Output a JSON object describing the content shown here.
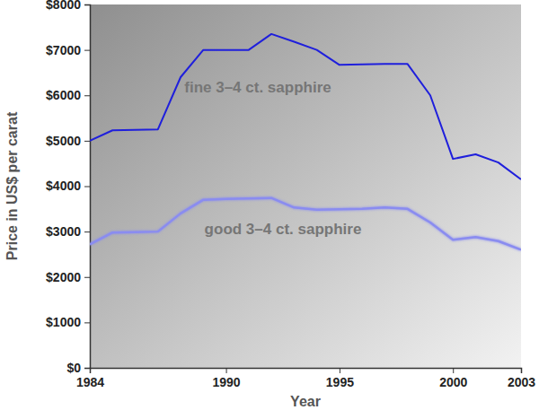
{
  "chart_data": {
    "type": "line",
    "x_label": "Year",
    "y_label": "Price in US$ per carat",
    "x": [
      1984,
      1985,
      1986,
      1987,
      1988,
      1989,
      1990,
      1991,
      1992,
      1993,
      1994,
      1995,
      1996,
      1997,
      1998,
      1999,
      2000,
      2001,
      2002,
      2003
    ],
    "series": [
      {
        "name": "fine 3–4 ct. sapphire",
        "color": "#1f1fdc",
        "values": [
          5000,
          5230,
          5240,
          5250,
          6400,
          7000,
          7000,
          7000,
          7350,
          7180,
          7000,
          6670,
          6680,
          6690,
          6690,
          6000,
          4600,
          4700,
          4520,
          4150
        ]
      },
      {
        "name": "good 3–4 ct. sapphire",
        "color": "#8a8cf0",
        "values": [
          2720,
          2980,
          2990,
          3000,
          3400,
          3700,
          3720,
          3730,
          3740,
          3530,
          3480,
          3490,
          3500,
          3530,
          3500,
          3200,
          2820,
          2880,
          2790,
          2600
        ]
      }
    ],
    "xlim": [
      1984,
      2003
    ],
    "xticks": [
      1984,
      1990,
      1995,
      2000,
      2003
    ],
    "ylim": [
      0,
      8000
    ],
    "yticks": [
      {
        "value": 0,
        "label": "$0"
      },
      {
        "value": 1000,
        "label": "$1000"
      },
      {
        "value": 2000,
        "label": "$2000"
      },
      {
        "value": 3000,
        "label": "$3000"
      },
      {
        "value": 4000,
        "label": "$4000"
      },
      {
        "value": 5000,
        "label": "$5000"
      },
      {
        "value": 6000,
        "label": "$6000"
      },
      {
        "value": 7000,
        "label": "$7000"
      },
      {
        "value": 8000,
        "label": "$8000"
      }
    ]
  }
}
